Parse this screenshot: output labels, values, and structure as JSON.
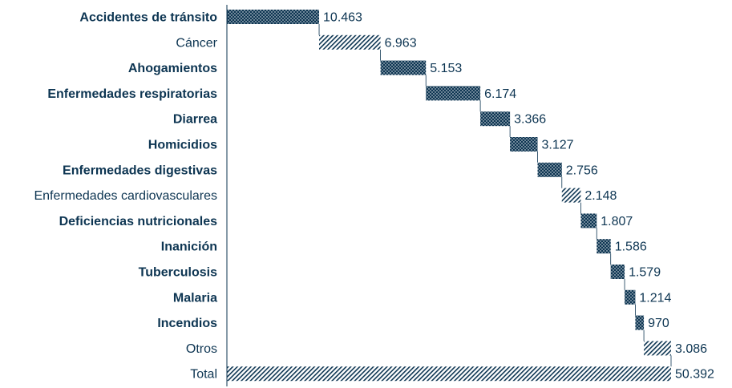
{
  "colors": {
    "primary": "#0d3552",
    "text": "#0d3552",
    "hatch": "#0d3552",
    "background": "#ffffff"
  },
  "chart_data": {
    "type": "bar",
    "subtype": "waterfall",
    "orientation": "horizontal",
    "title": "",
    "xlabel": "",
    "ylabel": "",
    "xlim": [
      0,
      50392
    ],
    "grid": false,
    "legend": "none",
    "categories": [
      "Accidentes de tránsito",
      "Cáncer",
      "Ahogamientos",
      "Enfermedades respiratorias",
      "Diarrea",
      "Homicidios",
      "Enfermedades digestivas",
      "Enfermedades cardiovasculares",
      "Deficiencias nutricionales",
      "Inanición",
      "Tuberculosis",
      "Malaria",
      "Incendios",
      "Otros",
      "Total"
    ],
    "values": [
      10463,
      6963,
      5153,
      6174,
      3366,
      3127,
      2756,
      2148,
      1807,
      1586,
      1579,
      1214,
      970,
      3086,
      50392
    ],
    "value_labels": [
      "10.463",
      "6.963",
      "5.153",
      "6.174",
      "3.366",
      "3.127",
      "2.756",
      "2.148",
      "1.807",
      "1.586",
      "1.579",
      "1.214",
      "970",
      "3.086",
      "50.392"
    ],
    "emphasized": [
      true,
      false,
      true,
      true,
      true,
      true,
      true,
      false,
      true,
      true,
      true,
      true,
      true,
      false,
      false
    ],
    "is_total": [
      false,
      false,
      false,
      false,
      false,
      false,
      false,
      false,
      false,
      false,
      false,
      false,
      false,
      false,
      true
    ],
    "fill_styles": [
      "dotted",
      "hatched",
      "dotted",
      "dotted",
      "dotted",
      "dotted",
      "dotted",
      "hatched",
      "dotted",
      "dotted",
      "dotted",
      "dotted",
      "dotted",
      "hatched",
      "hatched"
    ]
  }
}
